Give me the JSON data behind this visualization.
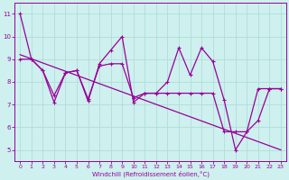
{
  "xlabel": "Windchill (Refroidissement éolien,°C)",
  "xlim": [
    -0.5,
    23.5
  ],
  "ylim": [
    4.5,
    11.5
  ],
  "yticks": [
    5,
    6,
    7,
    8,
    9,
    10,
    11
  ],
  "xticks": [
    0,
    1,
    2,
    3,
    4,
    5,
    6,
    7,
    8,
    9,
    10,
    11,
    12,
    13,
    14,
    15,
    16,
    17,
    18,
    19,
    20,
    21,
    22,
    23
  ],
  "bg_color": "#cef0ee",
  "grid_color": "#b0ddd8",
  "line_color": "#990099",
  "line1_x": [
    0,
    1,
    2,
    3,
    4,
    5,
    6,
    7,
    8,
    9,
    10,
    11,
    12,
    13,
    14,
    15,
    16,
    17,
    18,
    19,
    20,
    21,
    22,
    23
  ],
  "line1_y": [
    11.0,
    9.0,
    8.5,
    7.1,
    8.4,
    8.5,
    7.15,
    8.8,
    9.4,
    10.0,
    7.1,
    7.5,
    7.5,
    8.0,
    9.5,
    8.3,
    9.5,
    8.9,
    7.2,
    5.0,
    5.8,
    6.3,
    7.7,
    7.7
  ],
  "line2_x": [
    0,
    1,
    2,
    3,
    4,
    5,
    6,
    7,
    8,
    9,
    10,
    11,
    12,
    13,
    14,
    15,
    16,
    17,
    18,
    19,
    20,
    21,
    22,
    23
  ],
  "line2_y": [
    9.0,
    9.0,
    8.5,
    7.4,
    8.4,
    8.5,
    7.25,
    8.7,
    8.8,
    8.8,
    7.3,
    7.5,
    7.5,
    7.5,
    7.5,
    7.5,
    7.5,
    7.5,
    5.8,
    5.8,
    5.8,
    7.7,
    7.7,
    7.7
  ],
  "line3_x": [
    0,
    23
  ],
  "line3_y": [
    9.2,
    5.0
  ]
}
